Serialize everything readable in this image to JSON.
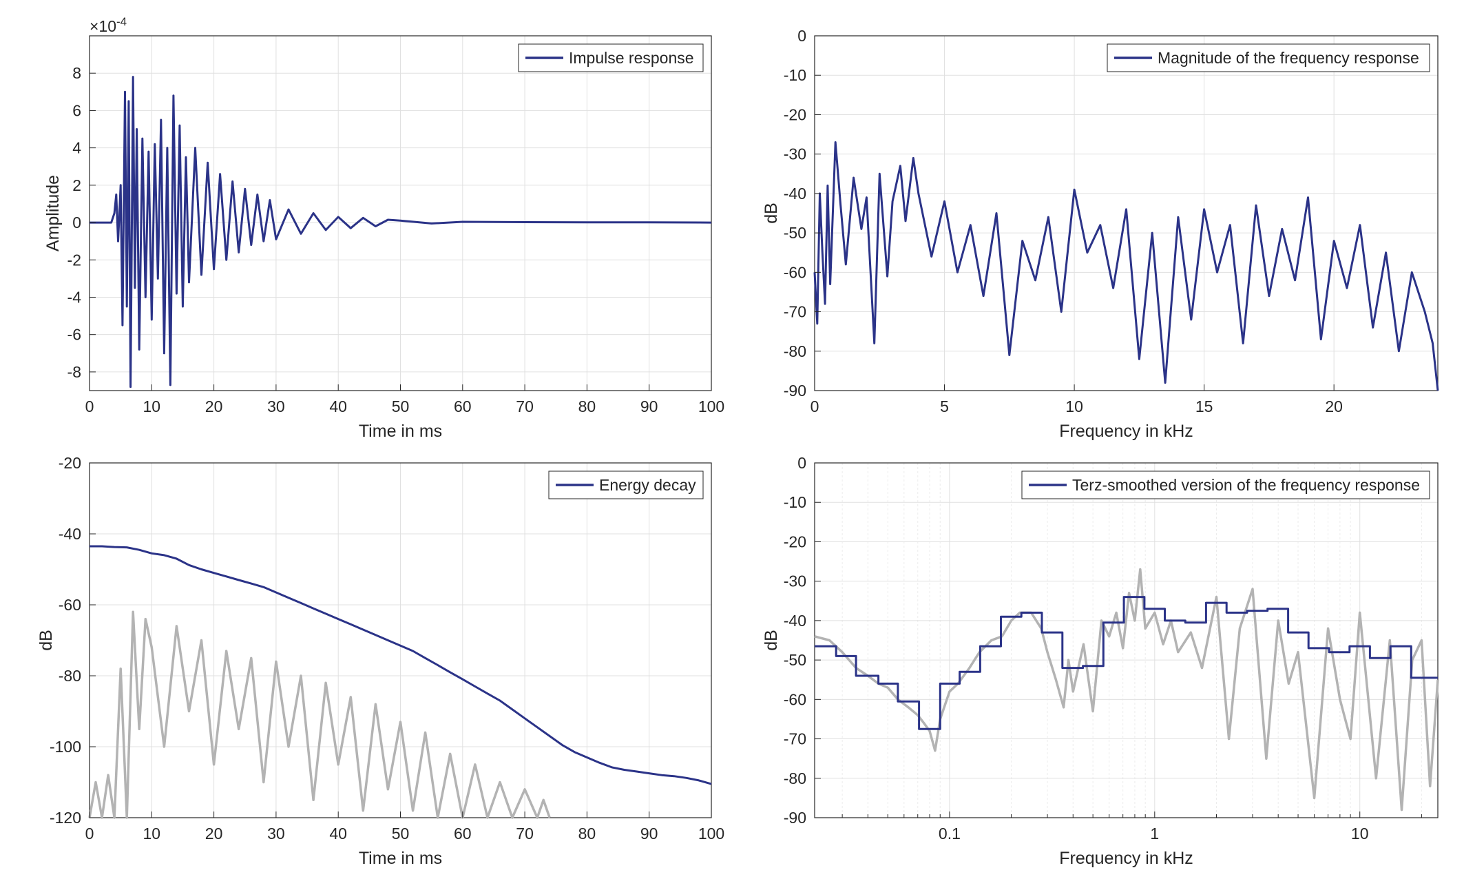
{
  "colors": {
    "primary": "#2b3388",
    "secondary": "#b3b3b3",
    "grid": "#e0e0e0",
    "axis": "#262626"
  },
  "chart_data": [
    {
      "id": "impulse",
      "type": "line",
      "xlabel": "Time in ms",
      "ylabel": "Amplitude",
      "xlim": [
        0,
        100
      ],
      "ylim": [
        -9,
        10
      ],
      "scale_label": "×10",
      "scale_exp": "-4",
      "xticks": [
        0,
        10,
        20,
        30,
        40,
        50,
        60,
        70,
        80,
        90,
        100
      ],
      "yticks": [
        -8,
        -6,
        -4,
        -2,
        0,
        2,
        4,
        6,
        8
      ],
      "xtick_labels": [
        "0",
        "10",
        "20",
        "30",
        "40",
        "50",
        "60",
        "70",
        "80",
        "90",
        "100"
      ],
      "ytick_labels": [
        "-8",
        "-6",
        "-4",
        "-2",
        "0",
        "2",
        "4",
        "6",
        "8"
      ],
      "legend": [
        "Impulse response"
      ],
      "legend_position": "top-right",
      "grid": true,
      "series": [
        {
          "name": "Impulse response",
          "color": "#2b3388",
          "x": [
            0,
            3.5,
            4.0,
            4.3,
            4.6,
            5.0,
            5.3,
            5.7,
            6.0,
            6.3,
            6.6,
            7.0,
            7.3,
            7.6,
            8.0,
            8.5,
            9.0,
            9.5,
            10.0,
            10.5,
            11.0,
            11.5,
            12.0,
            12.5,
            13.0,
            13.5,
            14.0,
            14.5,
            15.0,
            15.5,
            16.0,
            17.0,
            18.0,
            19.0,
            20.0,
            21.0,
            22.0,
            23.0,
            24.0,
            25.0,
            26.0,
            27.0,
            28.0,
            29.0,
            30.0,
            32.0,
            34.0,
            36.0,
            38.0,
            40.0,
            42.0,
            44.0,
            46.0,
            48.0,
            50.0,
            55.0,
            60.0,
            70.0,
            80.0,
            90.0,
            100.0
          ],
          "values": [
            0,
            0,
            0.5,
            1.5,
            -1.0,
            2.0,
            -5.5,
            7.0,
            -4.5,
            6.5,
            -8.8,
            7.8,
            -3.5,
            5.0,
            -6.8,
            4.5,
            -4.0,
            3.8,
            -5.2,
            4.2,
            -3.0,
            5.5,
            -7.0,
            4.0,
            -8.7,
            6.8,
            -3.8,
            5.2,
            -4.5,
            3.5,
            -3.2,
            4.0,
            -2.8,
            3.2,
            -2.5,
            2.6,
            -2.0,
            2.2,
            -1.6,
            1.8,
            -1.2,
            1.5,
            -1.0,
            1.2,
            -0.9,
            0.7,
            -0.6,
            0.5,
            -0.4,
            0.3,
            -0.3,
            0.25,
            -0.2,
            0.15,
            0.1,
            -0.05,
            0.04,
            0.02,
            0.01,
            0.01,
            0
          ]
        }
      ]
    },
    {
      "id": "magnitude",
      "type": "line",
      "xlabel": "Frequency in kHz",
      "ylabel": "dB",
      "xlim": [
        0,
        24
      ],
      "ylim": [
        -90,
        0
      ],
      "xticks": [
        0,
        5,
        10,
        15,
        20
      ],
      "yticks": [
        0,
        -10,
        -20,
        -30,
        -40,
        -50,
        -60,
        -70,
        -80,
        -90
      ],
      "xtick_labels": [
        "0",
        "5",
        "10",
        "15",
        "20"
      ],
      "ytick_labels": [
        "0",
        "-10",
        "-20",
        "-30",
        "-40",
        "-50",
        "-60",
        "-70",
        "-80",
        "-90"
      ],
      "legend": [
        "Magnitude of the frequency response"
      ],
      "legend_position": "top-right",
      "grid": true,
      "series": [
        {
          "name": "Magnitude of the frequency response",
          "color": "#2b3388",
          "x": [
            0,
            0.1,
            0.2,
            0.3,
            0.4,
            0.5,
            0.6,
            0.7,
            0.8,
            1.0,
            1.2,
            1.5,
            1.8,
            2.0,
            2.3,
            2.5,
            2.8,
            3.0,
            3.3,
            3.5,
            3.8,
            4.0,
            4.5,
            5.0,
            5.5,
            6.0,
            6.5,
            7.0,
            7.5,
            8.0,
            8.5,
            9.0,
            9.5,
            10.0,
            10.5,
            11.0,
            11.5,
            12.0,
            12.5,
            13.0,
            13.5,
            14.0,
            14.5,
            15.0,
            15.5,
            16.0,
            16.5,
            17.0,
            17.5,
            18.0,
            18.5,
            19.0,
            19.5,
            20.0,
            20.5,
            21.0,
            21.5,
            22.0,
            22.5,
            23.0,
            23.5,
            23.8,
            24.0
          ],
          "values": [
            -60,
            -73,
            -40,
            -55,
            -68,
            -38,
            -63,
            -45,
            -27,
            -43,
            -58,
            -36,
            -49,
            -41,
            -78,
            -35,
            -61,
            -42,
            -33,
            -47,
            -31,
            -40,
            -56,
            -42,
            -60,
            -48,
            -66,
            -45,
            -81,
            -52,
            -62,
            -46,
            -70,
            -39,
            -55,
            -48,
            -64,
            -44,
            -82,
            -50,
            -88,
            -46,
            -72,
            -44,
            -60,
            -48,
            -78,
            -43,
            -66,
            -49,
            -62,
            -41,
            -77,
            -52,
            -64,
            -48,
            -74,
            -55,
            -80,
            -60,
            -70,
            -78,
            -90
          ]
        }
      ]
    },
    {
      "id": "energy",
      "type": "line",
      "xlabel": "Time in ms",
      "ylabel": "dB",
      "xlim": [
        0,
        100
      ],
      "ylim": [
        -120,
        -20
      ],
      "xticks": [
        0,
        10,
        20,
        30,
        40,
        50,
        60,
        70,
        80,
        90,
        100
      ],
      "yticks": [
        -20,
        -40,
        -60,
        -80,
        -100,
        -120
      ],
      "xtick_labels": [
        "0",
        "10",
        "20",
        "30",
        "40",
        "50",
        "60",
        "70",
        "80",
        "90",
        "100"
      ],
      "ytick_labels": [
        "-20",
        "-40",
        "-60",
        "-80",
        "-100",
        "-120"
      ],
      "legend": [
        "Energy decay"
      ],
      "legend_position": "top-right",
      "grid": true,
      "series": [
        {
          "name": "Energy decay",
          "color": "#2b3388",
          "x": [
            0,
            2,
            4,
            6,
            8,
            10,
            12,
            14,
            16,
            18,
            20,
            22,
            24,
            26,
            28,
            30,
            32,
            34,
            36,
            38,
            40,
            42,
            44,
            46,
            48,
            50,
            52,
            54,
            56,
            58,
            60,
            62,
            64,
            66,
            68,
            70,
            72,
            74,
            76,
            78,
            80,
            82,
            84,
            86,
            88,
            90,
            92,
            94,
            96,
            98,
            100
          ],
          "values": [
            -43.5,
            -43.5,
            -43.7,
            -43.8,
            -44.5,
            -45.5,
            -46.0,
            -47.0,
            -48.8,
            -50.0,
            -51.0,
            -52.0,
            -53.0,
            -54.0,
            -55.0,
            -56.5,
            -58.0,
            -59.5,
            -61.0,
            -62.5,
            -64.0,
            -65.5,
            -67.0,
            -68.5,
            -70.0,
            -71.5,
            -73.0,
            -75.0,
            -77.0,
            -79.0,
            -81.0,
            -83.0,
            -85.0,
            -87.0,
            -89.5,
            -92.0,
            -94.5,
            -97.0,
            -99.5,
            -101.5,
            -103.0,
            -104.5,
            -105.8,
            -106.5,
            -107.0,
            -107.5,
            -108.0,
            -108.3,
            -108.8,
            -109.5,
            -110.5
          ]
        },
        {
          "name": "",
          "color": "#b3b3b3",
          "x": [
            0,
            1,
            2,
            3,
            4,
            5,
            6,
            7,
            8,
            9,
            10,
            12,
            14,
            16,
            18,
            20,
            22,
            24,
            26,
            28,
            30,
            32,
            34,
            36,
            38,
            40,
            42,
            44,
            46,
            48,
            50,
            52,
            54,
            56,
            58,
            60,
            62,
            64,
            66,
            68,
            70,
            72,
            73,
            74
          ],
          "values": [
            -120,
            -110,
            -120,
            -108,
            -120,
            -78,
            -120,
            -62,
            -95,
            -64,
            -72,
            -100,
            -66,
            -90,
            -70,
            -105,
            -73,
            -95,
            -75,
            -110,
            -76,
            -100,
            -80,
            -115,
            -82,
            -105,
            -86,
            -118,
            -88,
            -112,
            -93,
            -118,
            -96,
            -120,
            -102,
            -120,
            -105,
            -120,
            -110,
            -120,
            -112,
            -120,
            -115,
            -120
          ]
        }
      ]
    },
    {
      "id": "terz",
      "type": "line",
      "xlabel": "Frequency in kHz",
      "ylabel": "dB",
      "xscale": "log",
      "xlim": [
        0.022,
        24
      ],
      "ylim": [
        -90,
        0
      ],
      "xticks": [
        0.1,
        1,
        10
      ],
      "yticks": [
        0,
        -10,
        -20,
        -30,
        -40,
        -50,
        -60,
        -70,
        -80,
        -90
      ],
      "xtick_labels": [
        "0.1",
        "1",
        "10"
      ],
      "ytick_labels": [
        "0",
        "-10",
        "-20",
        "-30",
        "-40",
        "-50",
        "-60",
        "-70",
        "-80",
        "-90"
      ],
      "legend": [
        "Terz-smoothed version of the frequency response"
      ],
      "legend_position": "top-right",
      "grid": true,
      "series": [
        {
          "name": "",
          "color": "#b3b3b3",
          "x": [
            0.022,
            0.026,
            0.03,
            0.035,
            0.04,
            0.045,
            0.05,
            0.056,
            0.063,
            0.07,
            0.075,
            0.08,
            0.085,
            0.09,
            0.1,
            0.11,
            0.125,
            0.14,
            0.16,
            0.18,
            0.2,
            0.22,
            0.25,
            0.28,
            0.3,
            0.33,
            0.36,
            0.38,
            0.4,
            0.45,
            0.5,
            0.55,
            0.6,
            0.65,
            0.7,
            0.75,
            0.8,
            0.85,
            0.9,
            1.0,
            1.1,
            1.2,
            1.3,
            1.5,
            1.7,
            2.0,
            2.3,
            2.6,
            3.0,
            3.5,
            4.0,
            4.5,
            5.0,
            6.0,
            7.0,
            8.0,
            9.0,
            10.0,
            12.0,
            14.0,
            16.0,
            18.0,
            20.0,
            22.0,
            24.0
          ],
          "values": [
            -44,
            -45,
            -48,
            -52,
            -54,
            -56,
            -57,
            -60,
            -62,
            -64,
            -66,
            -68,
            -73,
            -65,
            -58,
            -56,
            -52,
            -48,
            -45,
            -44,
            -40,
            -38,
            -38,
            -42,
            -48,
            -55,
            -62,
            -50,
            -58,
            -46,
            -63,
            -40,
            -44,
            -38,
            -47,
            -33,
            -40,
            -27,
            -42,
            -38,
            -46,
            -40,
            -48,
            -43,
            -52,
            -34,
            -70,
            -42,
            -32,
            -75,
            -40,
            -56,
            -48,
            -85,
            -42,
            -60,
            -70,
            -38,
            -80,
            -45,
            -88,
            -50,
            -45,
            -82,
            -55
          ]
        },
        {
          "name": "Terz-smoothed version of the frequency response",
          "color": "#2b3388",
          "x": [
            0.022,
            0.028,
            0.028,
            0.035,
            0.035,
            0.045,
            0.045,
            0.056,
            0.056,
            0.071,
            0.071,
            0.09,
            0.09,
            0.112,
            0.112,
            0.141,
            0.141,
            0.178,
            0.178,
            0.224,
            0.224,
            0.282,
            0.282,
            0.355,
            0.355,
            0.447,
            0.447,
            0.562,
            0.562,
            0.708,
            0.708,
            0.891,
            0.891,
            1.12,
            1.12,
            1.41,
            1.41,
            1.78,
            1.78,
            2.24,
            2.24,
            2.82,
            2.82,
            3.55,
            3.55,
            4.47,
            4.47,
            5.62,
            5.62,
            7.08,
            7.08,
            8.91,
            8.91,
            11.2,
            11.2,
            14.1,
            14.1,
            17.8,
            17.8,
            24.0
          ],
          "values": [
            -46.5,
            -46.5,
            -49,
            -49,
            -54,
            -54,
            -56,
            -56,
            -60.5,
            -60.5,
            -67.5,
            -67.5,
            -56,
            -56,
            -53,
            -53,
            -46.5,
            -46.5,
            -39,
            -39,
            -38,
            -38,
            -43,
            -43,
            -52,
            -52,
            -51.5,
            -51.5,
            -40.5,
            -40.5,
            -34,
            -34,
            -37,
            -37,
            -40,
            -40,
            -40.5,
            -40.5,
            -35.5,
            -35.5,
            -38,
            -38,
            -37.5,
            -37.5,
            -37,
            -37,
            -43,
            -43,
            -47,
            -47,
            -48,
            -48,
            -46.5,
            -46.5,
            -49.5,
            -49.5,
            -46.5,
            -46.5,
            -54.5,
            -54.5
          ]
        }
      ]
    }
  ]
}
